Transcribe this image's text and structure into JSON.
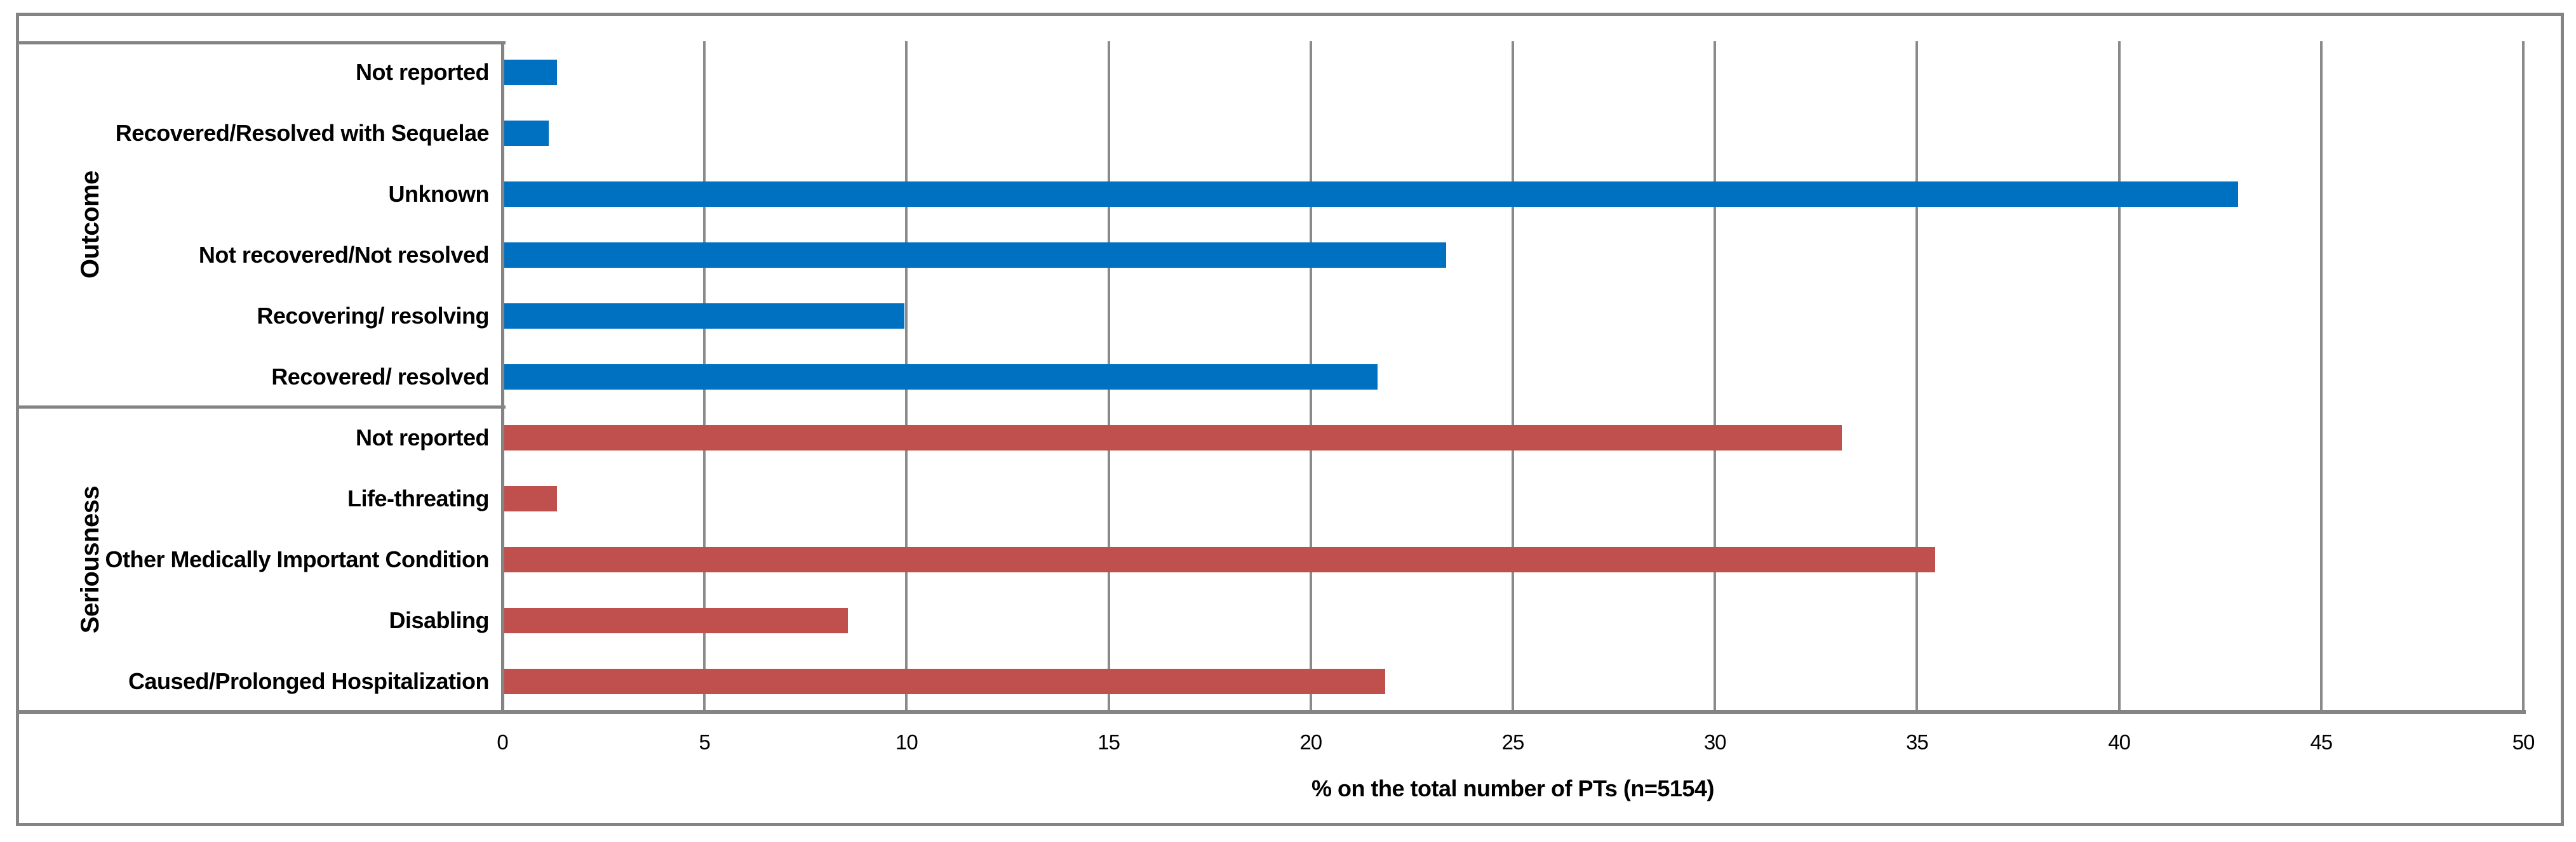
{
  "chart_data": {
    "type": "bar",
    "orientation": "horizontal",
    "title": "",
    "xlabel": "% on the total number of PTs (n=5154)",
    "ylabel": "",
    "xlim": [
      0,
      50
    ],
    "xticks": [
      0,
      5,
      10,
      15,
      20,
      25,
      30,
      35,
      40,
      45,
      50
    ],
    "grid": true,
    "legend": "none",
    "groups": [
      {
        "label": "Outcome",
        "color": "#0070C0",
        "items": [
          {
            "category": "Not reported",
            "value": 1.3
          },
          {
            "category": "Recovered/Resolved with Sequelae",
            "value": 1.1
          },
          {
            "category": "Unknown",
            "value": 42.9
          },
          {
            "category": "Not recovered/Not resolved",
            "value": 23.3
          },
          {
            "category": "Recovering/ resolving",
            "value": 9.9
          },
          {
            "category": "Recovered/ resolved",
            "value": 21.6
          }
        ]
      },
      {
        "label": "Seriousness",
        "color": "#C0504D",
        "items": [
          {
            "category": "Not reported",
            "value": 33.1
          },
          {
            "category": "Life-threating",
            "value": 1.3
          },
          {
            "category": "Other Medically Important Condition",
            "value": 35.4
          },
          {
            "category": "Disabling",
            "value": 8.5
          },
          {
            "category": "Caused/Prolonged Hospitalization",
            "value": 21.8
          }
        ]
      }
    ],
    "colors": {
      "outcome_bars": "#0070C0",
      "seriousness_bars": "#C0504D",
      "gridlines": "#8a8a8a",
      "border": "#848484",
      "text": "#000000"
    }
  }
}
